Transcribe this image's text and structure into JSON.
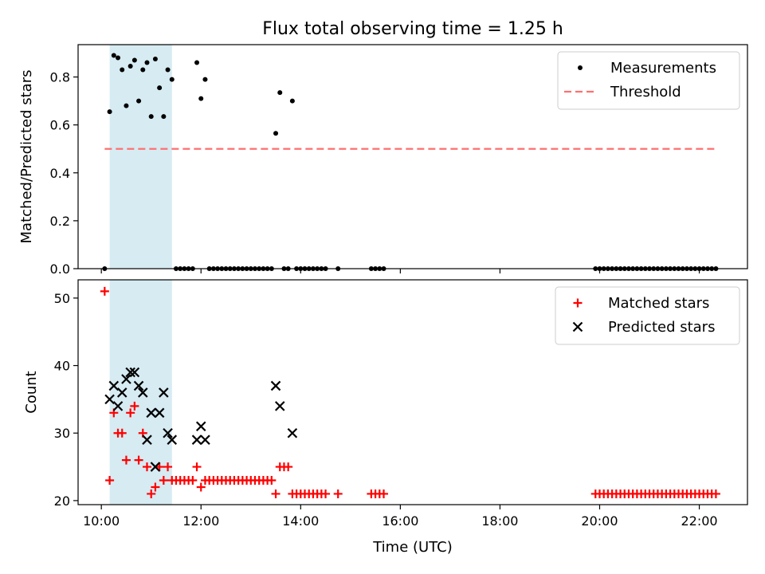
{
  "figure": {
    "title": "Flux total observing time = 1.25 h",
    "xlabel": "Time (UTC)"
  },
  "chart_data": [
    {
      "type": "scatter",
      "title": "Flux total observing time = 1.25 h",
      "ylabel": "Matched/Predicted stars",
      "xlabel": "",
      "xlim": [
        "09:32",
        "22:58"
      ],
      "ylim": [
        0,
        0.935
      ],
      "yticks": [
        0.0,
        0.2,
        0.4,
        0.6,
        0.8
      ],
      "ytick_labels": [
        "0.0",
        "0.2",
        "0.4",
        "0.6",
        "0.8"
      ],
      "grid": false,
      "legend_position": "top-right",
      "shaded_span": {
        "x": [
          "10:10",
          "11:25"
        ],
        "color": "#add8e6"
      },
      "series": [
        {
          "name": "Measurements",
          "kind": "scatter",
          "marker": "dot",
          "color": "#000000",
          "points": [
            [
              "10:04",
              0.0
            ],
            [
              "10:10",
              0.655
            ],
            [
              "10:15",
              0.89
            ],
            [
              "10:20",
              0.88
            ],
            [
              "10:25",
              0.83
            ],
            [
              "10:30",
              0.68
            ],
            [
              "10:35",
              0.845
            ],
            [
              "10:40",
              0.87
            ],
            [
              "10:45",
              0.7
            ],
            [
              "10:50",
              0.83
            ],
            [
              "10:55",
              0.86
            ],
            [
              "11:00",
              0.635
            ],
            [
              "11:05",
              0.875
            ],
            [
              "11:10",
              0.755
            ],
            [
              "11:15",
              0.635
            ],
            [
              "11:20",
              0.83
            ],
            [
              "11:25",
              0.79
            ],
            [
              "11:30",
              0.0
            ],
            [
              "11:35",
              0.0
            ],
            [
              "11:40",
              0.0
            ],
            [
              "11:45",
              0.0
            ],
            [
              "11:50",
              0.0
            ],
            [
              "11:55",
              0.86
            ],
            [
              "12:00",
              0.71
            ],
            [
              "12:05",
              0.79
            ],
            [
              "12:10",
              0.0
            ],
            [
              "12:15",
              0.0
            ],
            [
              "12:20",
              0.0
            ],
            [
              "12:25",
              0.0
            ],
            [
              "12:30",
              0.0
            ],
            [
              "12:35",
              0.0
            ],
            [
              "12:40",
              0.0
            ],
            [
              "12:45",
              0.0
            ],
            [
              "12:50",
              0.0
            ],
            [
              "12:55",
              0.0
            ],
            [
              "13:00",
              0.0
            ],
            [
              "13:05",
              0.0
            ],
            [
              "13:10",
              0.0
            ],
            [
              "13:15",
              0.0
            ],
            [
              "13:20",
              0.0
            ],
            [
              "13:25",
              0.0
            ],
            [
              "13:30",
              0.565
            ],
            [
              "13:35",
              0.735
            ],
            [
              "13:40",
              0.0
            ],
            [
              "13:45",
              0.0
            ],
            [
              "13:50",
              0.7
            ],
            [
              "13:55",
              0.0
            ],
            [
              "14:00",
              0.0
            ],
            [
              "14:05",
              0.0
            ],
            [
              "14:10",
              0.0
            ],
            [
              "14:15",
              0.0
            ],
            [
              "14:20",
              0.0
            ],
            [
              "14:25",
              0.0
            ],
            [
              "14:30",
              0.0
            ],
            [
              "14:45",
              0.0
            ],
            [
              "15:25",
              0.0
            ],
            [
              "15:30",
              0.0
            ],
            [
              "15:35",
              0.0
            ],
            [
              "15:40",
              0.0
            ],
            [
              "19:55",
              0.0
            ],
            [
              "20:00",
              0.0
            ],
            [
              "20:05",
              0.0
            ],
            [
              "20:10",
              0.0
            ],
            [
              "20:15",
              0.0
            ],
            [
              "20:20",
              0.0
            ],
            [
              "20:25",
              0.0
            ],
            [
              "20:30",
              0.0
            ],
            [
              "20:35",
              0.0
            ],
            [
              "20:40",
              0.0
            ],
            [
              "20:45",
              0.0
            ],
            [
              "20:50",
              0.0
            ],
            [
              "20:55",
              0.0
            ],
            [
              "21:00",
              0.0
            ],
            [
              "21:05",
              0.0
            ],
            [
              "21:10",
              0.0
            ],
            [
              "21:15",
              0.0
            ],
            [
              "21:20",
              0.0
            ],
            [
              "21:25",
              0.0
            ],
            [
              "21:30",
              0.0
            ],
            [
              "21:35",
              0.0
            ],
            [
              "21:40",
              0.0
            ],
            [
              "21:45",
              0.0
            ],
            [
              "21:50",
              0.0
            ],
            [
              "21:55",
              0.0
            ],
            [
              "22:00",
              0.0
            ],
            [
              "22:05",
              0.0
            ],
            [
              "22:10",
              0.0
            ],
            [
              "22:15",
              0.0
            ],
            [
              "22:20",
              0.0
            ]
          ]
        },
        {
          "name": "Threshold",
          "kind": "line",
          "style": "dashed",
          "color": "#ff7070",
          "points": [
            [
              "10:04",
              0.5
            ],
            [
              "22:20",
              0.5
            ]
          ]
        }
      ]
    },
    {
      "type": "scatter",
      "ylabel": "Count",
      "xlabel": "Time (UTC)",
      "xlim": [
        "09:32",
        "22:58"
      ],
      "ylim": [
        19.4,
        52.7
      ],
      "yticks": [
        20,
        30,
        40,
        50
      ],
      "ytick_labels": [
        "20",
        "30",
        "40",
        "50"
      ],
      "xticks": [
        "10:00",
        "12:00",
        "14:00",
        "16:00",
        "18:00",
        "20:00",
        "22:00"
      ],
      "xtick_labels": [
        "10:00",
        "12:00",
        "14:00",
        "16:00",
        "18:00",
        "20:00",
        "22:00"
      ],
      "grid": false,
      "legend_position": "top-right",
      "shaded_span": {
        "x": [
          "10:10",
          "11:25"
        ],
        "color": "#add8e6"
      },
      "series": [
        {
          "name": "Matched stars",
          "kind": "scatter",
          "marker": "plus",
          "color": "#ff0000",
          "points": [
            [
              "10:04",
              51
            ],
            [
              "10:10",
              23
            ],
            [
              "10:15",
              33
            ],
            [
              "10:20",
              30
            ],
            [
              "10:25",
              30
            ],
            [
              "10:30",
              26
            ],
            [
              "10:35",
              33
            ],
            [
              "10:40",
              34
            ],
            [
              "10:45",
              26
            ],
            [
              "10:50",
              30
            ],
            [
              "10:55",
              25
            ],
            [
              "11:00",
              21
            ],
            [
              "11:05",
              22
            ],
            [
              "11:10",
              25
            ],
            [
              "11:15",
              23
            ],
            [
              "11:20",
              25
            ],
            [
              "11:25",
              23
            ],
            [
              "11:30",
              23
            ],
            [
              "11:35",
              23
            ],
            [
              "11:40",
              23
            ],
            [
              "11:45",
              23
            ],
            [
              "11:50",
              23
            ],
            [
              "11:55",
              25
            ],
            [
              "12:00",
              22
            ],
            [
              "12:05",
              23
            ],
            [
              "12:10",
              23
            ],
            [
              "12:15",
              23
            ],
            [
              "12:20",
              23
            ],
            [
              "12:25",
              23
            ],
            [
              "12:30",
              23
            ],
            [
              "12:35",
              23
            ],
            [
              "12:40",
              23
            ],
            [
              "12:45",
              23
            ],
            [
              "12:50",
              23
            ],
            [
              "12:55",
              23
            ],
            [
              "13:00",
              23
            ],
            [
              "13:05",
              23
            ],
            [
              "13:10",
              23
            ],
            [
              "13:15",
              23
            ],
            [
              "13:20",
              23
            ],
            [
              "13:25",
              23
            ],
            [
              "13:30",
              21
            ],
            [
              "13:35",
              25
            ],
            [
              "13:40",
              25
            ],
            [
              "13:45",
              25
            ],
            [
              "13:50",
              21
            ],
            [
              "13:55",
              21
            ],
            [
              "14:00",
              21
            ],
            [
              "14:05",
              21
            ],
            [
              "14:10",
              21
            ],
            [
              "14:15",
              21
            ],
            [
              "14:20",
              21
            ],
            [
              "14:25",
              21
            ],
            [
              "14:30",
              21
            ],
            [
              "14:45",
              21
            ],
            [
              "15:25",
              21
            ],
            [
              "15:30",
              21
            ],
            [
              "15:35",
              21
            ],
            [
              "15:40",
              21
            ],
            [
              "19:55",
              21
            ],
            [
              "20:00",
              21
            ],
            [
              "20:05",
              21
            ],
            [
              "20:10",
              21
            ],
            [
              "20:15",
              21
            ],
            [
              "20:20",
              21
            ],
            [
              "20:25",
              21
            ],
            [
              "20:30",
              21
            ],
            [
              "20:35",
              21
            ],
            [
              "20:40",
              21
            ],
            [
              "20:45",
              21
            ],
            [
              "20:50",
              21
            ],
            [
              "20:55",
              21
            ],
            [
              "21:00",
              21
            ],
            [
              "21:05",
              21
            ],
            [
              "21:10",
              21
            ],
            [
              "21:15",
              21
            ],
            [
              "21:20",
              21
            ],
            [
              "21:25",
              21
            ],
            [
              "21:30",
              21
            ],
            [
              "21:35",
              21
            ],
            [
              "21:40",
              21
            ],
            [
              "21:45",
              21
            ],
            [
              "21:50",
              21
            ],
            [
              "21:55",
              21
            ],
            [
              "22:00",
              21
            ],
            [
              "22:05",
              21
            ],
            [
              "22:10",
              21
            ],
            [
              "22:15",
              21
            ],
            [
              "22:20",
              21
            ]
          ]
        },
        {
          "name": "Predicted stars",
          "kind": "scatter",
          "marker": "x",
          "color": "#000000",
          "points": [
            [
              "10:10",
              35
            ],
            [
              "10:15",
              37
            ],
            [
              "10:20",
              34
            ],
            [
              "10:25",
              36
            ],
            [
              "10:30",
              38
            ],
            [
              "10:35",
              39
            ],
            [
              "10:40",
              39
            ],
            [
              "10:45",
              37
            ],
            [
              "10:50",
              36
            ],
            [
              "10:55",
              29
            ],
            [
              "11:00",
              33
            ],
            [
              "11:05",
              25
            ],
            [
              "11:10",
              33
            ],
            [
              "11:15",
              36
            ],
            [
              "11:20",
              30
            ],
            [
              "11:25",
              29
            ],
            [
              "11:55",
              29
            ],
            [
              "12:00",
              31
            ],
            [
              "12:05",
              29
            ],
            [
              "13:30",
              37
            ],
            [
              "13:35",
              34
            ],
            [
              "13:50",
              30
            ]
          ]
        }
      ]
    }
  ]
}
